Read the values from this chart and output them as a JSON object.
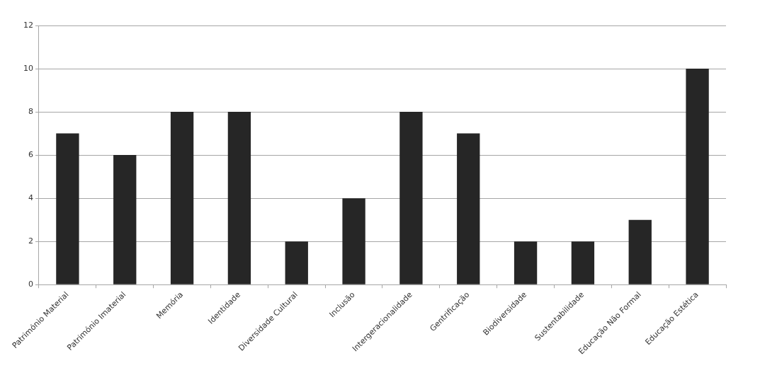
{
  "chart_data": {
    "type": "bar",
    "categories": [
      "Património Material",
      "Património Imaterial",
      "Memória",
      "Identidade",
      "Diversidade Cultural",
      "Inclusão",
      "Intergeracionalidade",
      "Gentrificação",
      "Biodiversidade",
      "Sustentabilidade",
      "Educação Não Formal",
      "Educação Estética"
    ],
    "values": [
      7,
      6,
      8,
      8,
      2,
      4,
      8,
      7,
      2,
      2,
      3,
      10
    ],
    "color": "#262626",
    "ylim": [
      0,
      12
    ],
    "yticks": [
      0,
      2,
      4,
      6,
      8,
      10,
      12
    ],
    "grid": "y",
    "legend": false
  }
}
